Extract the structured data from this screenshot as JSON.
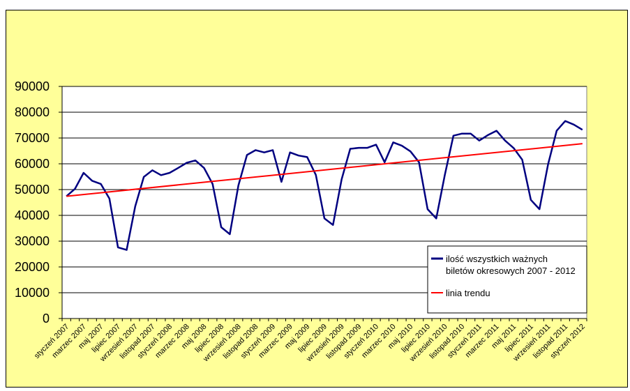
{
  "chart_data": {
    "type": "line",
    "title": "",
    "xlabel": "",
    "ylabel": "",
    "ylim": [
      0,
      90000
    ],
    "yticks": [
      "0",
      "10000",
      "20000",
      "30000",
      "40000",
      "50000",
      "60000",
      "70000",
      "80000",
      "90000"
    ],
    "grid": true,
    "legend_position": "bottom-right",
    "x": [
      "styczeń 2007",
      "luty 2007",
      "marzec 2007",
      "kwiecień 2007",
      "maj 2007",
      "czerwiec 2007",
      "lipiec 2007",
      "sierpień 2007",
      "wrzesień 2007",
      "październik 2007",
      "listopad 2007",
      "grudzień 2007",
      "styczeń 2008",
      "luty 2008",
      "marzec 2008",
      "kwiecień 2008",
      "maj 2008",
      "czerwiec 2008",
      "lipiec 2008",
      "sierpień 2008",
      "wrzesień 2008",
      "październik 2008",
      "listopad 2008",
      "grudzień 2008",
      "styczeń 2009",
      "luty 2009",
      "marzec 2009",
      "kwiecień 2009",
      "maj 2009",
      "czerwiec 2009",
      "lipiec 2009",
      "sierpień 2009",
      "wrzesień 2009",
      "październik 2009",
      "listopad 2009",
      "grudzień 2009",
      "styczeń 2010",
      "luty 2010",
      "marzec 2010",
      "kwiecień 2010",
      "maj 2010",
      "czerwiec 2010",
      "lipiec 2010",
      "sierpień 2010",
      "wrzesień 2010",
      "październik 2010",
      "listopad 2010",
      "grudzień 2010",
      "styczeń 2011",
      "luty 2011",
      "marzec 2011",
      "kwiecień 2011",
      "maj 2011",
      "czerwiec 2011",
      "lipiec 2011",
      "sierpień 2011",
      "wrzesień 2011",
      "październik 2011",
      "listopad 2011",
      "grudzień 2011",
      "styczeń 2012"
    ],
    "x_tick_labels": [
      "styczeń 2007",
      "marzec 2007",
      "maj 2007",
      "lipiec 2007",
      "wrzesień 2007",
      "listopad 2007",
      "styczeń 2008",
      "marzec 2008",
      "maj 2008",
      "lipiec 2008",
      "wrzesień 2008",
      "listopad 2008",
      "styczeń 2009",
      "marzec 2009",
      "maj 2009",
      "lipiec 2009",
      "wrzesień 2009",
      "listopad 2009",
      "styczeń 2010",
      "marzec 2010",
      "maj 2010",
      "lipiec 2010",
      "wrzesień 2010",
      "listopad 2010",
      "styczeń 2011",
      "marzec 2011",
      "maj 2011",
      "lipiec 2011",
      "wrzesień 2011",
      "listopad 2011",
      "styczeń 2012"
    ],
    "series": [
      {
        "name": "ilość wszystkich ważnych biletów okresowych 2007 - 2012",
        "color": "#000080",
        "values": [
          47400,
          50300,
          56500,
          53400,
          52200,
          46500,
          27600,
          26600,
          43500,
          54900,
          57500,
          55600,
          56500,
          58400,
          60400,
          61300,
          58400,
          52200,
          35400,
          32700,
          51600,
          63400,
          65300,
          64400,
          65300,
          53000,
          64400,
          63200,
          62600,
          55700,
          38800,
          36300,
          54000,
          65800,
          66200,
          66200,
          67400,
          60600,
          68300,
          67000,
          64800,
          60600,
          42400,
          38800,
          55700,
          70900,
          71700,
          71700,
          69000,
          71100,
          72800,
          69000,
          66100,
          61600,
          46000,
          42400,
          59700,
          72800,
          76600,
          75200,
          73200
        ]
      },
      {
        "name": "linia trendu",
        "color": "#ff0000",
        "start": 47400,
        "end": 67800
      }
    ],
    "legend_lines": [
      [
        "ilość wszystkich ważnych",
        "biletów okresowych 2007 - 2012"
      ],
      [
        "linia trendu"
      ]
    ]
  }
}
